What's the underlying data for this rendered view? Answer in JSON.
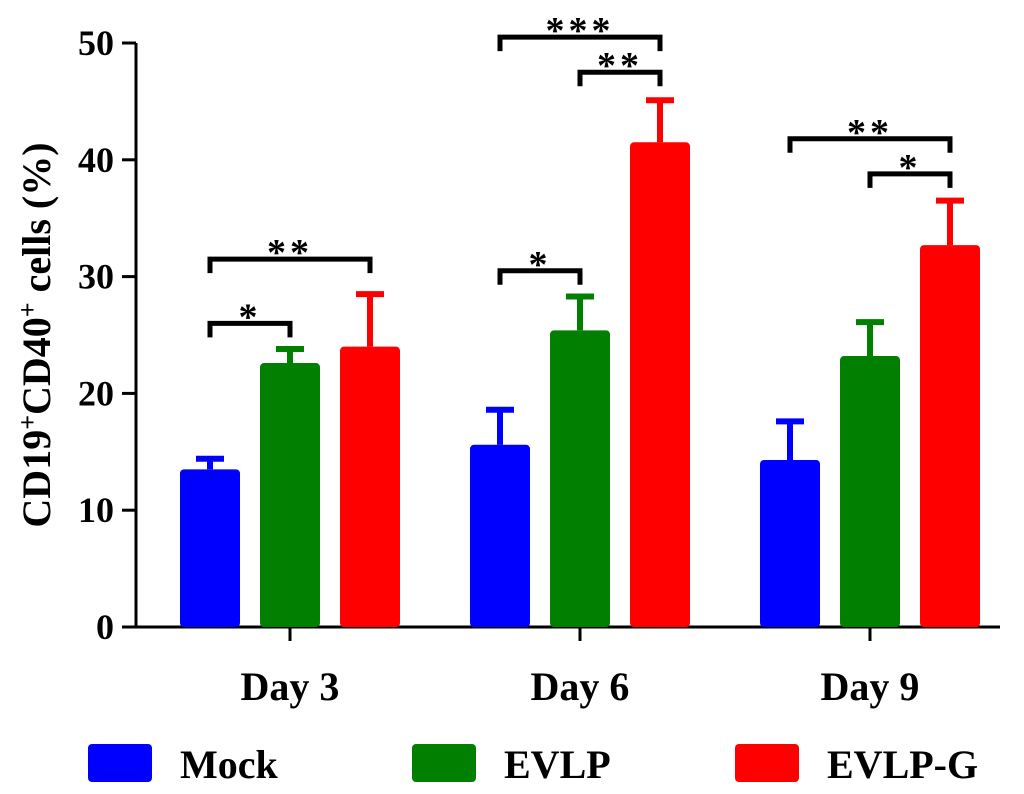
{
  "chart_data": {
    "type": "bar",
    "title": "",
    "xlabel": "",
    "ylabel": {
      "main": "CD19",
      "sup1": "+",
      "mid": "CD40",
      "sup2": "+",
      "rest": " cells (%)"
    },
    "ylim": [
      0,
      50
    ],
    "yticks": [
      0,
      10,
      20,
      30,
      40,
      50
    ],
    "categories": [
      "Day 3",
      "Day 6",
      "Day 9"
    ],
    "series": [
      {
        "name": "Mock",
        "color": "#0000ff",
        "values": [
          13.5,
          15.6,
          14.3
        ],
        "errors": [
          0.9,
          3.0,
          3.3
        ]
      },
      {
        "name": "EVLP",
        "color": "#007f00",
        "values": [
          22.6,
          25.4,
          23.2
        ],
        "errors": [
          1.2,
          2.9,
          2.9
        ]
      },
      {
        "name": "EVLP-G",
        "color": "#ff0000",
        "values": [
          24.0,
          41.5,
          32.7
        ],
        "errors": [
          4.5,
          3.6,
          3.8
        ]
      }
    ],
    "significance": [
      {
        "category": 0,
        "from": 0,
        "to": 1,
        "label": "*",
        "level": 26
      },
      {
        "category": 0,
        "from": 0,
        "to": 2,
        "label": "**",
        "level": 31.5
      },
      {
        "category": 1,
        "from": 0,
        "to": 1,
        "label": "*",
        "level": 30.5
      },
      {
        "category": 1,
        "from": 1,
        "to": 2,
        "label": "**",
        "level": 47.5
      },
      {
        "category": 1,
        "from": 0,
        "to": 2,
        "label": "***",
        "level": 50.5
      },
      {
        "category": 2,
        "from": 1,
        "to": 2,
        "label": "*",
        "level": 38.8
      },
      {
        "category": 2,
        "from": 0,
        "to": 2,
        "label": "**",
        "level": 41.8
      }
    ],
    "legend": {
      "position": "bottom"
    }
  }
}
